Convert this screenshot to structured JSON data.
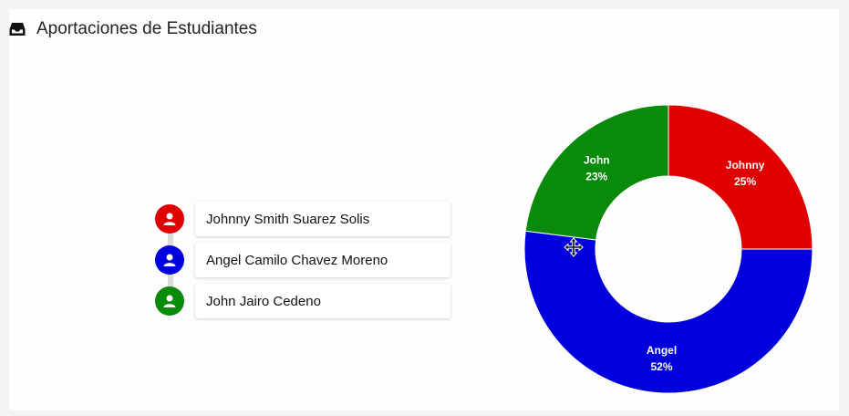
{
  "header": {
    "title": "Aportaciones de Estudiantes",
    "icon": "inbox-icon"
  },
  "students": [
    {
      "name": "Johnny Smith Suarez Solis",
      "color": "#e00000",
      "icon": "user-icon"
    },
    {
      "name": "Angel Camilo Chavez Moreno",
      "color": "#0000dd",
      "icon": "user-icon"
    },
    {
      "name": "John Jairo Cedeno",
      "color": "#0a8a0a",
      "icon": "user-icon"
    }
  ],
  "chart_data": {
    "type": "pie",
    "title": "Aportaciones de Estudiantes",
    "categories": [
      "Johnny",
      "Angel",
      "John"
    ],
    "values": [
      25,
      52,
      23
    ],
    "labels": [
      "25%",
      "52%",
      "23%"
    ],
    "colors": [
      "#e00000",
      "#0000dd",
      "#0a8a0a"
    ],
    "donut": true
  }
}
